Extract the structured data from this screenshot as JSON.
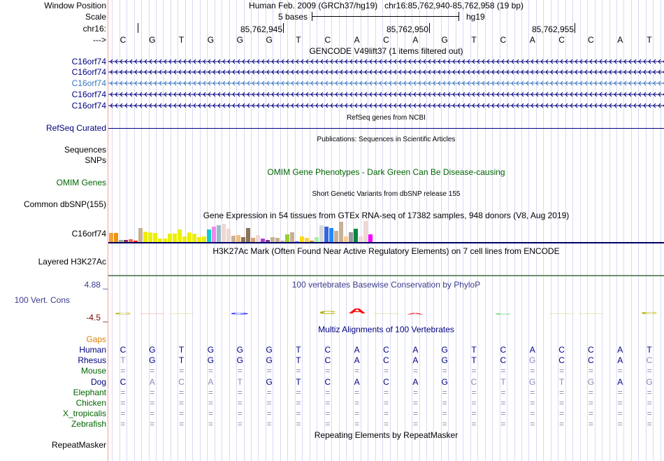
{
  "header": {
    "window_position_label": "Window Position",
    "window_position_value": "Human Feb. 2009 (GRCh37/hg19)   chr16:85,762,940-85,762,958 (19 bp)",
    "scale_label": "Scale",
    "scale_text": "5 bases",
    "scale_assembly": "hg19",
    "chrom_label": "chr16:",
    "coord_ticks": [
      "85,762,945",
      "85,762,950",
      "85,762,955"
    ],
    "strand_label": "--->"
  },
  "bases": [
    "C",
    "G",
    "T",
    "G",
    "G",
    "G",
    "T",
    "C",
    "A",
    "C",
    "A",
    "G",
    "T",
    "C",
    "A",
    "C",
    "C",
    "A",
    "T"
  ],
  "tracks": {
    "gencode_title": "GENCODE V49lift37 (1 items filtered out)",
    "gencode_items": [
      "C16orf74",
      "C16orf74",
      "C16orf74",
      "C16orf74",
      "C16orf74"
    ],
    "refseq_title": "RefSeq genes from NCBI",
    "refseq_label": "RefSeq Curated",
    "publications_title": "Publications: Sequences in Scientific Articles",
    "sequences_label": "Sequences",
    "snps_label": "SNPs",
    "omim_title": "OMIM Gene Phenotypes - Dark Green Can Be Disease-causing",
    "omim_label": "OMIM Genes",
    "dbsnp_title": "Short Genetic Variants from dbSNP release 155",
    "dbsnp_label": "Common dbSNP(155)",
    "gtex_title": "Gene Expression in 54 tissues from GTEx RNA-seq of 17382 samples, 948 donors (V8, Aug 2019)",
    "gtex_label": "C16orf74",
    "h3k27ac_title": "H3K27Ac Mark (Often Found Near Active Regulatory Elements) on 7 cell lines from ENCODE",
    "h3k27ac_label": "Layered H3K27Ac",
    "cons_title": "100 vertebrates Basewise Conservation by PhyloP",
    "cons_label": "100 Vert. Cons",
    "cons_max": "4.88 _",
    "cons_min": "-4.5 _",
    "multiz_title": "Multiz Alignments of 100 Vertebrates",
    "gaps_label": "Gaps",
    "repeat_title": "Repeating Elements by RepeatMasker",
    "repeat_label": "RepeatMasker"
  },
  "alignment": [
    {
      "species": "Human",
      "seq": "CGTGGGTCACAGTCACCAT"
    },
    {
      "species": "Rhesus",
      "seq": "TGTGGGTCACAGTCGCCAC"
    },
    {
      "species": "Mouse",
      "seq": "==================="
    },
    {
      "species": "Dog",
      "seq": "CACATGTCACAGCTGTGAG"
    },
    {
      "species": "Elephant",
      "seq": "==================="
    },
    {
      "species": "Chicken",
      "seq": "==================="
    },
    {
      "species": "X_tropicalis",
      "seq": "==================="
    },
    {
      "species": "Zebrafish",
      "seq": "==================="
    }
  ],
  "conservation_logo": [
    {
      "pos": 0,
      "letter": "C",
      "height": 0.15,
      "color": "#b5b000"
    },
    {
      "pos": 1,
      "letter": "-",
      "height": 0.05,
      "color": "#ff4040"
    },
    {
      "pos": 2,
      "letter": "-",
      "height": 0.05,
      "color": "#b5b000"
    },
    {
      "pos": 4,
      "letter": "G",
      "height": 0.15,
      "color": "#2020ff"
    },
    {
      "pos": 7,
      "letter": "C",
      "height": 0.3,
      "color": "#b5b000"
    },
    {
      "pos": 8,
      "letter": "A",
      "height": 0.45,
      "color": "#ff0000"
    },
    {
      "pos": 9,
      "letter": "-",
      "height": 0.08,
      "color": "#b5b000"
    },
    {
      "pos": 10,
      "letter": "A",
      "height": 0.12,
      "color": "#ff0000"
    },
    {
      "pos": 13,
      "letter": "C",
      "height": 0.08,
      "color": "#30c030"
    },
    {
      "pos": 15,
      "letter": "-",
      "height": 0.07,
      "color": "#b5b000"
    },
    {
      "pos": 16,
      "letter": "-",
      "height": 0.07,
      "color": "#b5b000"
    },
    {
      "pos": 18,
      "letter": "C",
      "height": 0.2,
      "color": "#b5b000"
    }
  ],
  "gtex_values": [
    39,
    39,
    9,
    9,
    12,
    6,
    60,
    44,
    41,
    39,
    15,
    15,
    36,
    36,
    54,
    24,
    41,
    35,
    21,
    24,
    54,
    66,
    72,
    78,
    57,
    27,
    30,
    21,
    60,
    18,
    30,
    15,
    9,
    21,
    18,
    6,
    33,
    42,
    3,
    24,
    18,
    6,
    21,
    72,
    66,
    60,
    48,
    87,
    24,
    42,
    57,
    24,
    90,
    33
  ],
  "gtex_colors": [
    "#f2a03a",
    "#f29010",
    "#88b088",
    "#882266",
    "#ee6644",
    "#ff1111",
    "#c8b090",
    "#eeee00",
    "#eeee00",
    "#eeee00",
    "#eeee00",
    "#eeee00",
    "#eeee00",
    "#eeee00",
    "#eeee00",
    "#eeee00",
    "#eeee00",
    "#eeee00",
    "#eeee00",
    "#eeee00",
    "#11cccc",
    "#ee88ee",
    "#99bbcc",
    "#eed8d4",
    "#eed8d4",
    "#c8b098",
    "#f0c080",
    "#8b7355",
    "#8b7355",
    "#d8a070",
    "#eed8d4",
    "#aa44cc",
    "#7a3a9a",
    "#c8b098",
    "#c8b098",
    "#c8b098",
    "#99cc33",
    "#c8b098",
    "#6666ff",
    "#ffdd00",
    "#ffcc55",
    "#cc9922",
    "#aaeeaa",
    "#d8d8d8",
    "#3366dd",
    "#2288ff",
    "#c8b098",
    "#c8b098",
    "#ffcc88",
    "#999999",
    "#008844",
    "#eed8d4",
    "#eed8d4",
    "#ff00ff"
  ]
}
